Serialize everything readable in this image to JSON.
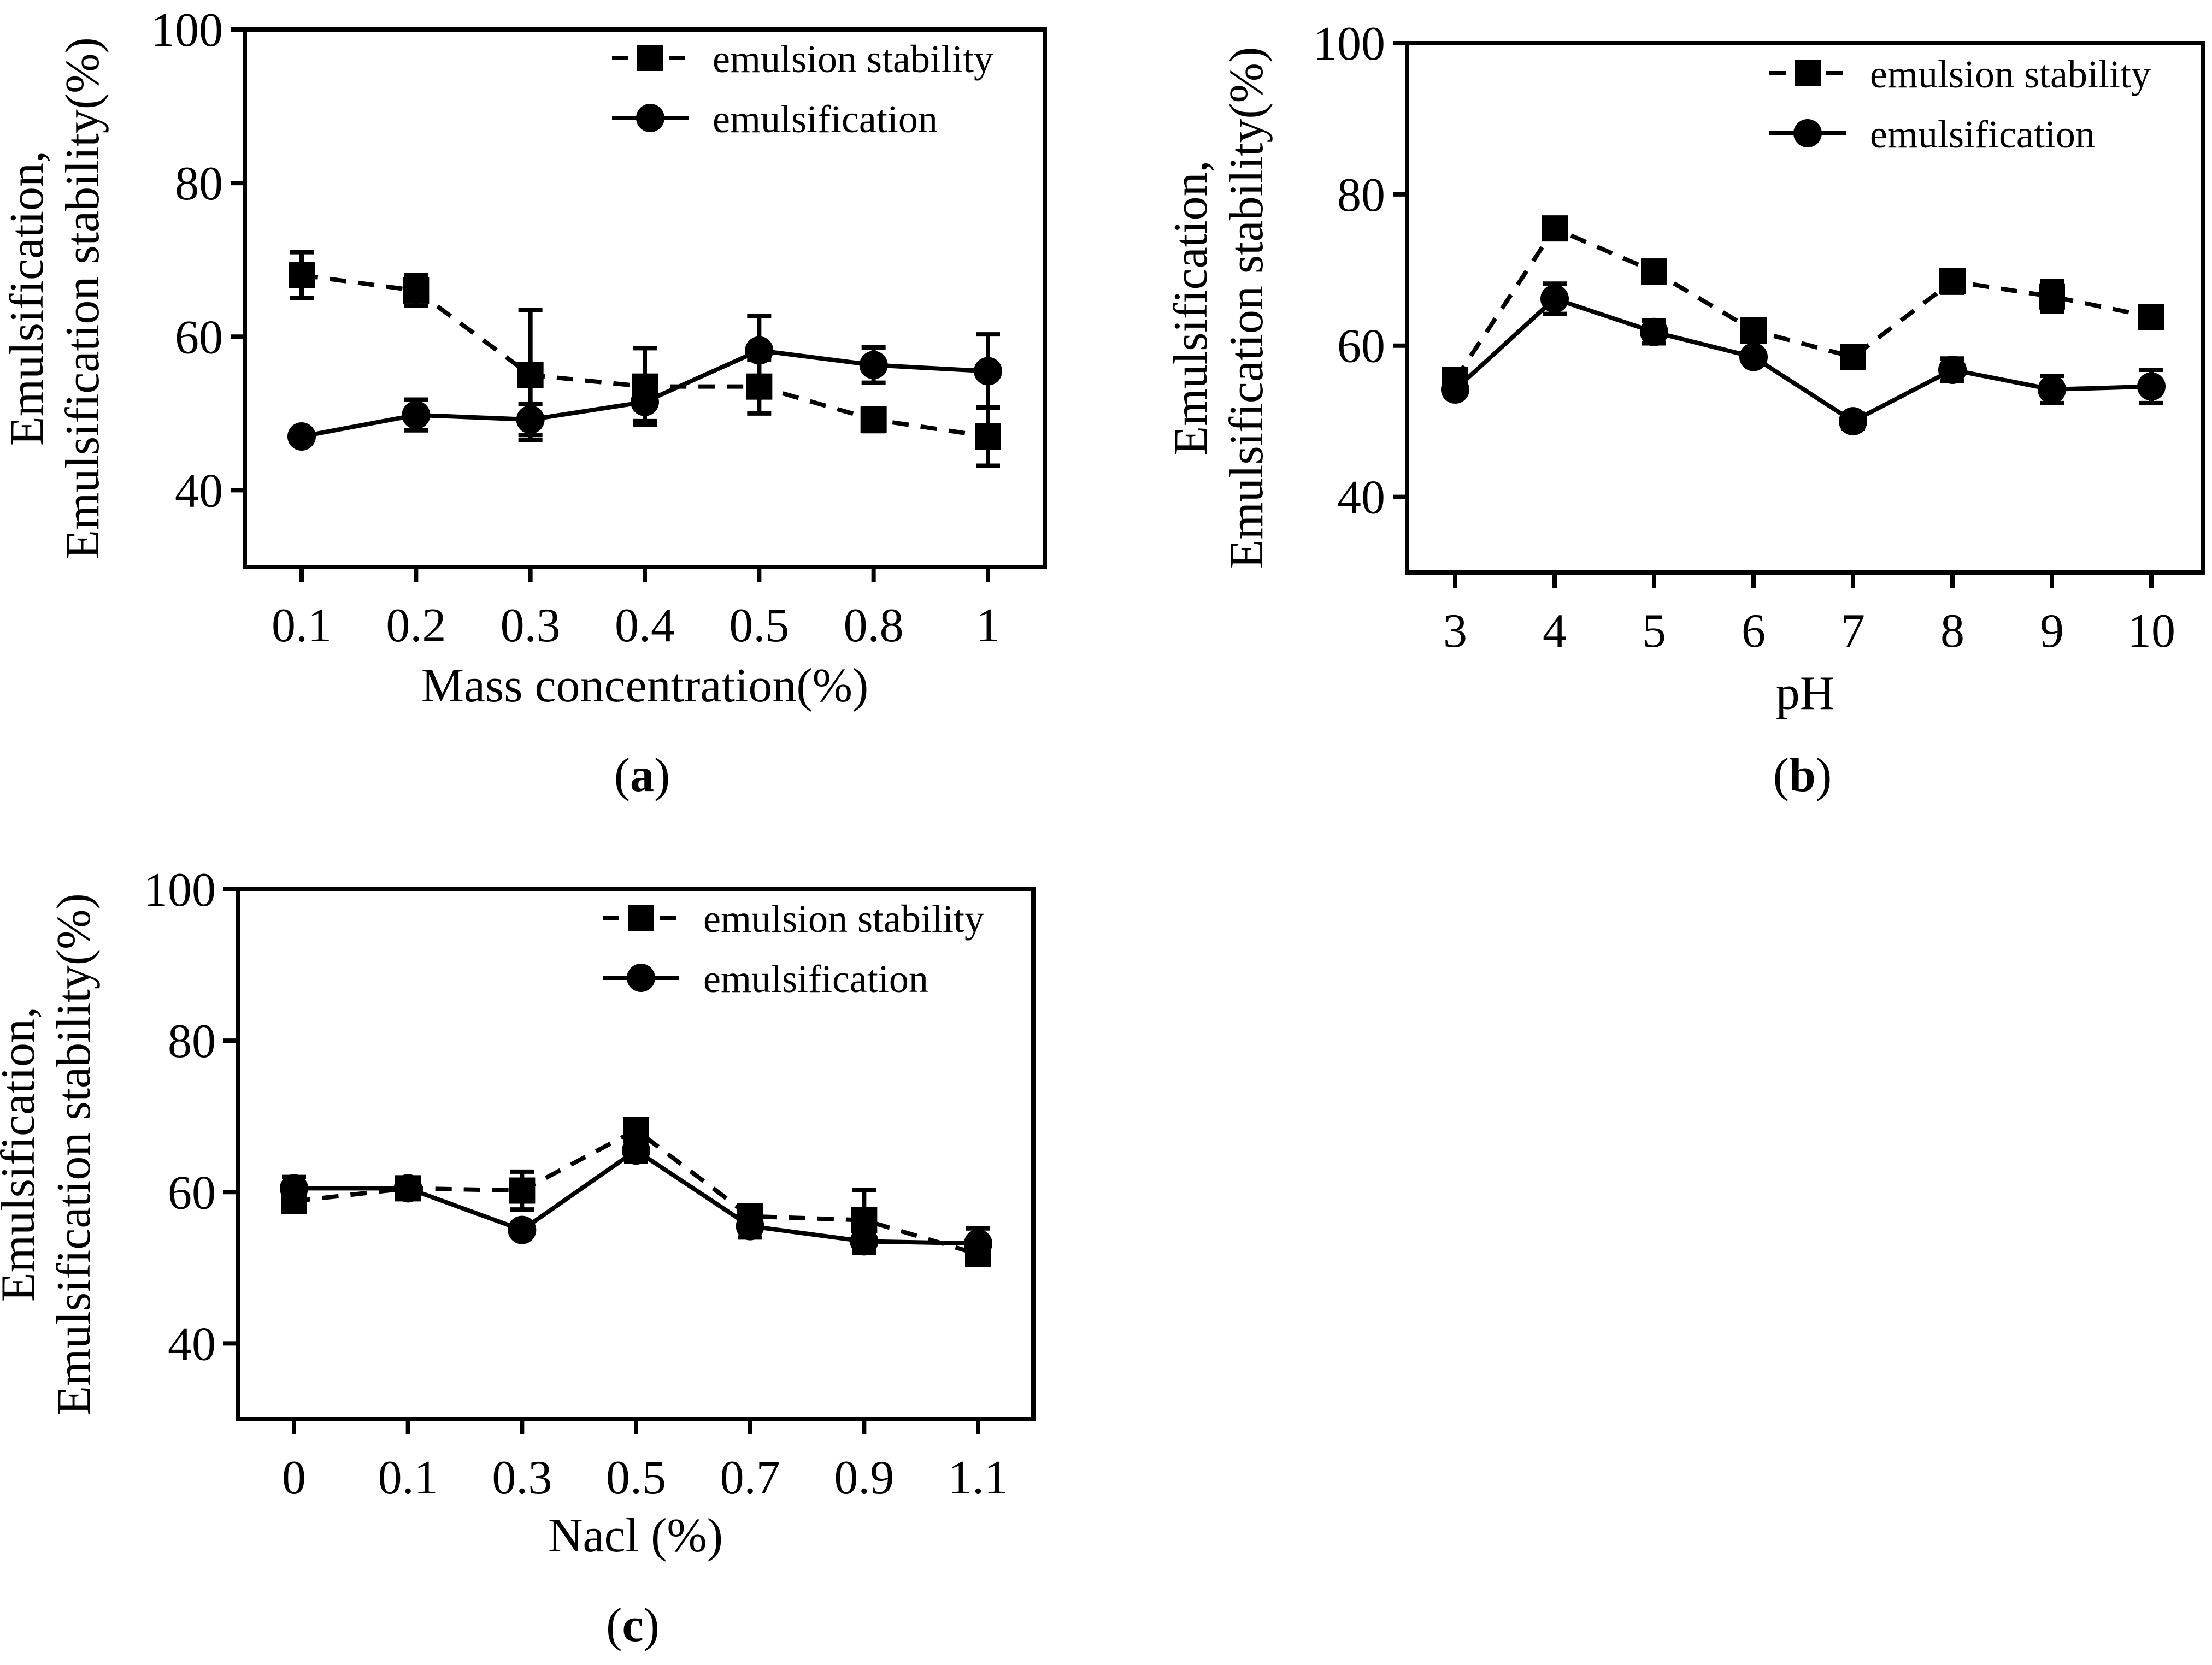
{
  "chart_data": [
    {
      "id": "a",
      "type": "line",
      "panel_label": "a",
      "xlabel": "Mass concentration(%)",
      "ylabel_line1": "Emulsification,",
      "ylabel_line2": "Emulsification stability(%)",
      "categories": [
        "0.1",
        "0.2",
        "0.3",
        "0.4",
        "0.5",
        "0.8",
        "1"
      ],
      "ylim": [
        30,
        100
      ],
      "yticks": [
        40,
        60,
        80,
        100
      ],
      "series": [
        {
          "name": "emulsion stability",
          "style": "dashed",
          "marker": "square",
          "values": [
            68,
            66,
            55,
            53.5,
            53.5,
            49.2,
            47
          ],
          "errors": [
            3,
            2,
            8.5,
            5,
            3.5,
            1.5,
            3.8
          ]
        },
        {
          "name": "emulsification",
          "style": "solid",
          "marker": "circle",
          "values": [
            47,
            49.8,
            49.2,
            51.5,
            58.2,
            56.3,
            55.5
          ],
          "errors": [
            0,
            2,
            2,
            2.5,
            4.5,
            2.3,
            4.8
          ]
        }
      ]
    },
    {
      "id": "b",
      "type": "line",
      "panel_label": "b",
      "xlabel": "pH",
      "ylabel_line1": "Emulsification,",
      "ylabel_line2": "Emulsification stability(%)",
      "categories": [
        "3",
        "4",
        "5",
        "6",
        "7",
        "8",
        "9",
        "10"
      ],
      "ylim": [
        30,
        100
      ],
      "yticks": [
        40,
        60,
        80,
        100
      ],
      "series": [
        {
          "name": "emulsion stability",
          "style": "dashed",
          "marker": "square",
          "values": [
            55.5,
            75.5,
            69.8,
            62,
            58.5,
            68.5,
            66.5,
            63.8
          ],
          "errors": [
            0,
            0.8,
            1,
            0.8,
            1.2,
            1.5,
            2,
            1.2
          ]
        },
        {
          "name": "emulsification",
          "style": "solid",
          "marker": "circle",
          "values": [
            54.2,
            66.2,
            61.8,
            58.5,
            50,
            56.8,
            54.2,
            54.6
          ],
          "errors": [
            0,
            2,
            1.5,
            0.8,
            1,
            1.5,
            1.8,
            2.2
          ]
        }
      ]
    },
    {
      "id": "c",
      "type": "line",
      "panel_label": "c",
      "xlabel": "Nacl (%)",
      "ylabel_line1": "Emulsification,",
      "ylabel_line2": "Emulsification stability(%)",
      "categories": [
        "0",
        "0.1",
        "0.3",
        "0.5",
        "0.7",
        "0.9",
        "1.1"
      ],
      "ylim": [
        30,
        100
      ],
      "yticks": [
        40,
        60,
        80,
        100
      ],
      "series": [
        {
          "name": "emulsion stability",
          "style": "dashed",
          "marker": "square",
          "values": [
            58.8,
            60.5,
            60.2,
            68.2,
            56.8,
            56.3,
            51.8
          ],
          "errors": [
            1,
            1.2,
            2.5,
            1.2,
            1.2,
            4,
            1
          ]
        },
        {
          "name": "emulsification",
          "style": "solid",
          "marker": "circle",
          "values": [
            60.5,
            60.5,
            55,
            65.5,
            55.5,
            53.5,
            53.2
          ],
          "errors": [
            1.5,
            1,
            0,
            1.5,
            1.5,
            1.5,
            2
          ]
        }
      ]
    }
  ]
}
